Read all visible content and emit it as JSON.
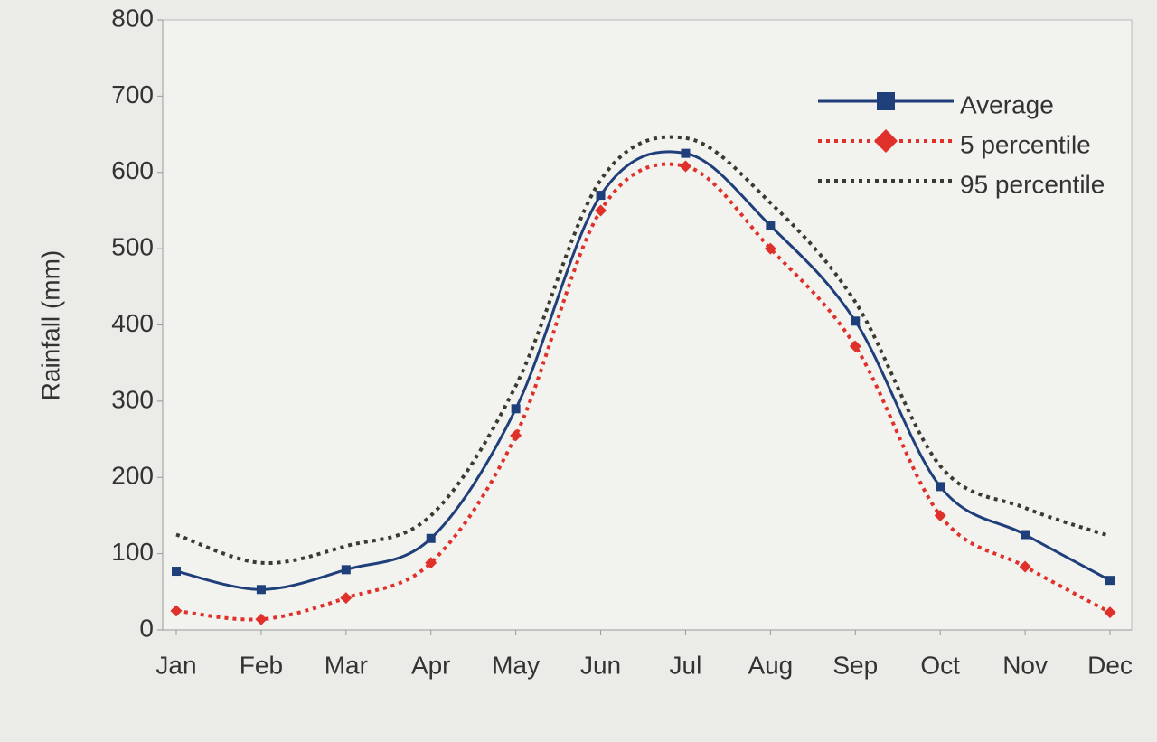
{
  "chart_data": {
    "type": "line",
    "y_label": "Rainfall (mm)",
    "categories": [
      "Jan",
      "Feb",
      "Mar",
      "Apr",
      "May",
      "Jun",
      "Jul",
      "Aug",
      "Sep",
      "Oct",
      "Nov",
      "Dec"
    ],
    "series": [
      {
        "name": "Average",
        "color": "#1f3f7a",
        "dash": "solid",
        "marker": "square",
        "values": [
          77,
          53,
          79,
          120,
          290,
          570,
          625,
          530,
          405,
          188,
          125,
          65
        ]
      },
      {
        "name": "5 percentile",
        "color": "#e0302a",
        "dash": "dotted",
        "marker": "diamond",
        "values": [
          25,
          14,
          42,
          88,
          255,
          550,
          608,
          500,
          372,
          150,
          83,
          23
        ]
      },
      {
        "name": "95 percentile",
        "color": "#3a3a30",
        "dash": "dotted",
        "marker": "none",
        "values": [
          125,
          88,
          110,
          150,
          320,
          590,
          645,
          560,
          430,
          215,
          160,
          123
        ]
      }
    ],
    "ylim": [
      0,
      800
    ],
    "yticks": [
      0,
      100,
      200,
      300,
      400,
      500,
      600,
      700,
      800
    ],
    "grid": false,
    "smooth": true,
    "legend": "top-right"
  }
}
